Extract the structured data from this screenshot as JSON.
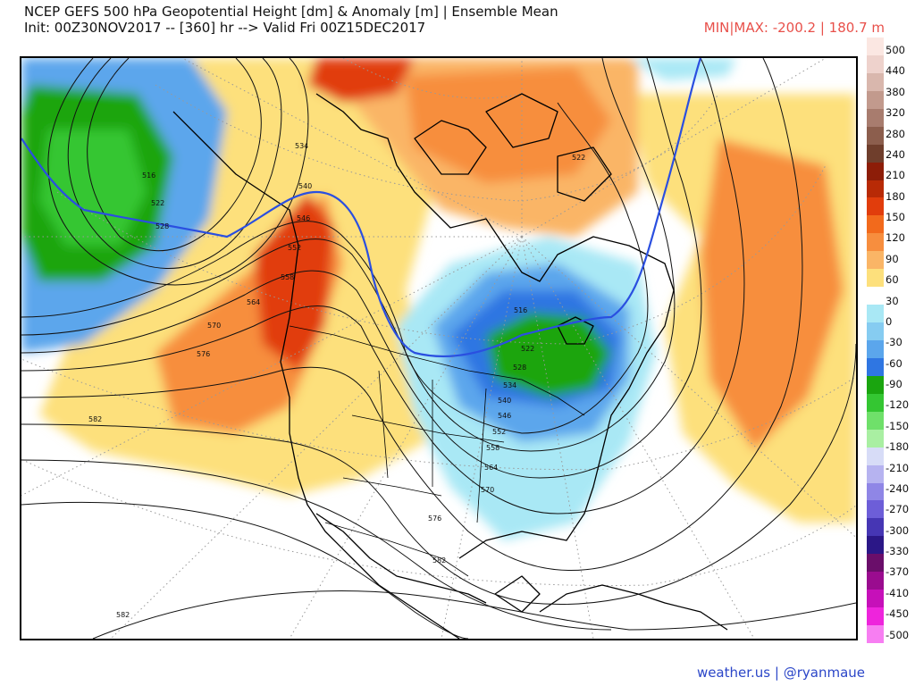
{
  "header": {
    "title_line1": "NCEP GEFS 500 hPa Geopotential Height [dm] & Anomaly [m] | Ensemble Mean",
    "title_line2": "Init: 00Z30NOV2017 -- [360] hr --> Valid Fri 00Z15DEC2017",
    "minmax": "MIN|MAX: -200.2 | 180.7 m"
  },
  "legend": {
    "labels": [
      "500",
      "440",
      "380",
      "320",
      "280",
      "240",
      "210",
      "180",
      "150",
      "120",
      "90",
      "60",
      "30",
      "0",
      "-30",
      "-60",
      "-90",
      "-120",
      "-150",
      "-180",
      "-210",
      "-240",
      "-270",
      "-300",
      "-330",
      "-370",
      "-410",
      "-450",
      "-500"
    ],
    "colors": [
      "#fbe7e2",
      "#eed2cc",
      "#d9b7ad",
      "#c29a8d",
      "#a87c6e",
      "#8c5e4d",
      "#6f3e2c",
      "#8d1d08",
      "#b82a06",
      "#e13d0c",
      "#f26a1c",
      "#f78e3e",
      "#fab566",
      "#fde07c",
      "#ffffff",
      "#a9e8f5",
      "#86ccf1",
      "#5ba6ec",
      "#2f76e2",
      "#1aa50f",
      "#34c632",
      "#6fe06a",
      "#a9efa2",
      "#d7dcf7",
      "#b6b3f0",
      "#8f86e6",
      "#6d5ed8",
      "#4636b4",
      "#2b1787",
      "#6a0e6a",
      "#9a0c8f",
      "#c610b9",
      "#ee24dc",
      "#f77ef2"
    ]
  },
  "contour_labels": [
    "516",
    "522",
    "528",
    "534",
    "540",
    "546",
    "552",
    "558",
    "564",
    "570",
    "576",
    "582",
    "522",
    "528",
    "534",
    "540",
    "546",
    "552",
    "558",
    "564",
    "570",
    "576",
    "582",
    "582",
    "522",
    "516"
  ],
  "footer": {
    "credit": "weather.us | @ryanmaue"
  }
}
